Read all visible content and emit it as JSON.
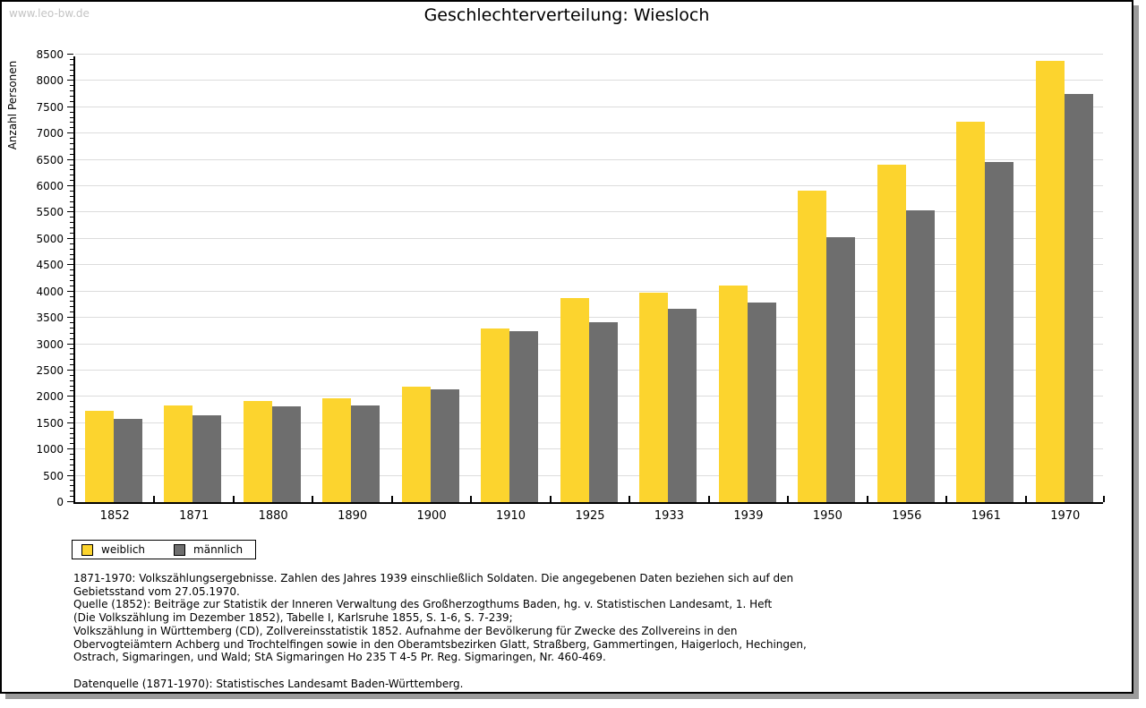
{
  "watermark": "www.leo-bw.de",
  "title": "Geschlechterverteilung: Wiesloch",
  "colors": {
    "weiblich": "#fcd42e",
    "maennlich": "#6e6e6e",
    "gridline": "#dcdcdc",
    "axis": "#000000",
    "watermark": "#c4c4c4",
    "shadow": "#9b9b9b"
  },
  "legend": {
    "items": [
      {
        "label": "weiblich",
        "color": "#fcd42e"
      },
      {
        "label": "männlich",
        "color": "#6e6e6e"
      }
    ]
  },
  "chart_data": {
    "type": "bar",
    "title": "Geschlechterverteilung: Wiesloch",
    "xlabel": "",
    "ylabel": "Anzahl Personen",
    "ylim": [
      0,
      8500
    ],
    "yticks": [
      0,
      500,
      1000,
      1500,
      2000,
      2500,
      3000,
      3500,
      4000,
      4500,
      5000,
      5500,
      6000,
      6500,
      7000,
      7500,
      8000,
      8500
    ],
    "minor_tick_step": 100,
    "grid": "horizontal",
    "legend_position": "bottom-left",
    "categories": [
      "1852",
      "1871",
      "1880",
      "1890",
      "1900",
      "1910",
      "1925",
      "1933",
      "1939",
      "1950",
      "1956",
      "1961",
      "1970"
    ],
    "series": [
      {
        "name": "weiblich",
        "color": "#fcd42e",
        "values": [
          1730,
          1840,
          1915,
          1975,
          2190,
          3295,
          3870,
          3975,
          4120,
          5910,
          6410,
          7225,
          8375
        ]
      },
      {
        "name": "männlich",
        "color": "#6e6e6e",
        "values": [
          1585,
          1655,
          1825,
          1835,
          2140,
          3240,
          3415,
          3670,
          3795,
          5030,
          5550,
          6455,
          7745
        ]
      }
    ]
  },
  "footnotes": {
    "lines": [
      "1871-1970: Volkszählungsergebnisse. Zahlen des Jahres 1939 einschließlich Soldaten. Die angegebenen Daten beziehen sich auf den",
      "Gebietsstand vom 27.05.1970.",
      "Quelle (1852): Beiträge zur Statistik der Inneren Verwaltung des Großherzogthums Baden, hg. v. Statistischen Landesamt, 1. Heft",
      "(Die Volkszählung im Dezember 1852), Tabelle I, Karlsruhe 1855, S. 1-6, S. 7-239;",
      "Volkszählung in Württemberg (CD), Zollvereinsstatistik 1852. Aufnahme der Bevölkerung für Zwecke des Zollvereins in den",
      "Obervogteiämtern Achberg und Trochtelfingen sowie in den Oberamtsbezirken Glatt, Straßberg, Gammertingen, Haigerloch, Hechingen,",
      "Ostrach, Sigmaringen, und Wald; StA Sigmaringen Ho 235 T 4-5 Pr. Reg. Sigmaringen, Nr. 460-469.",
      "Datenquelle (1871-1970): Statistisches Landesamt Baden-Württemberg."
    ]
  }
}
